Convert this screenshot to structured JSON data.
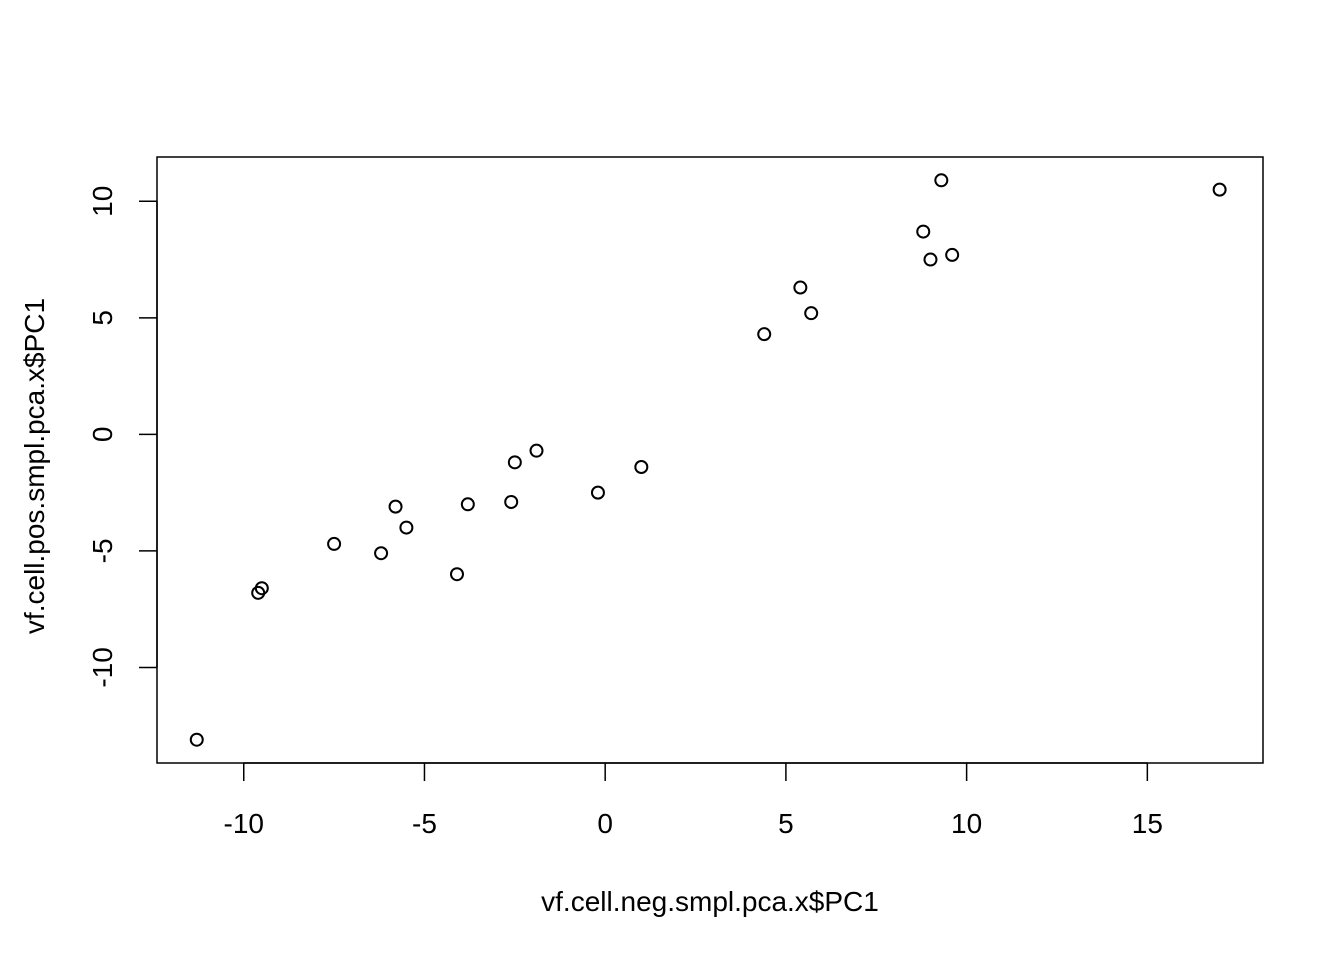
{
  "chart_data": {
    "type": "scatter",
    "title": "",
    "xlabel": "vf.cell.neg.smpl.pca.x$PC1",
    "ylabel": "vf.cell.pos.smpl.pca.x$PC1",
    "xlim": [
      -12.4,
      18.2
    ],
    "ylim": [
      -14.1,
      11.9
    ],
    "xticks": [
      -10,
      -5,
      0,
      5,
      10,
      15
    ],
    "yticks": [
      -10,
      -5,
      0,
      5,
      10
    ],
    "xtick_labels": [
      "-10",
      "-5",
      "0",
      "5",
      "10",
      "15"
    ],
    "ytick_labels": [
      "-10",
      "-5",
      "0",
      "5",
      "10"
    ],
    "grid": false,
    "marker": "open-circle",
    "points": [
      {
        "x": -11.3,
        "y": -13.1
      },
      {
        "x": -9.5,
        "y": -6.6
      },
      {
        "x": -9.6,
        "y": -6.8
      },
      {
        "x": -7.5,
        "y": -4.7
      },
      {
        "x": -6.2,
        "y": -5.1
      },
      {
        "x": -5.8,
        "y": -3.1
      },
      {
        "x": -5.5,
        "y": -4.0
      },
      {
        "x": -4.1,
        "y": -6.0
      },
      {
        "x": -3.8,
        "y": -3.0
      },
      {
        "x": -2.6,
        "y": -2.9
      },
      {
        "x": -2.5,
        "y": -1.2
      },
      {
        "x": -1.9,
        "y": -0.7
      },
      {
        "x": -0.2,
        "y": -2.5
      },
      {
        "x": 1.0,
        "y": -1.4
      },
      {
        "x": 4.4,
        "y": 4.3
      },
      {
        "x": 5.4,
        "y": 6.3
      },
      {
        "x": 5.7,
        "y": 5.2
      },
      {
        "x": 8.8,
        "y": 8.7
      },
      {
        "x": 9.0,
        "y": 7.5
      },
      {
        "x": 9.3,
        "y": 10.9
      },
      {
        "x": 9.6,
        "y": 7.7
      },
      {
        "x": 17.0,
        "y": 10.5
      }
    ]
  }
}
